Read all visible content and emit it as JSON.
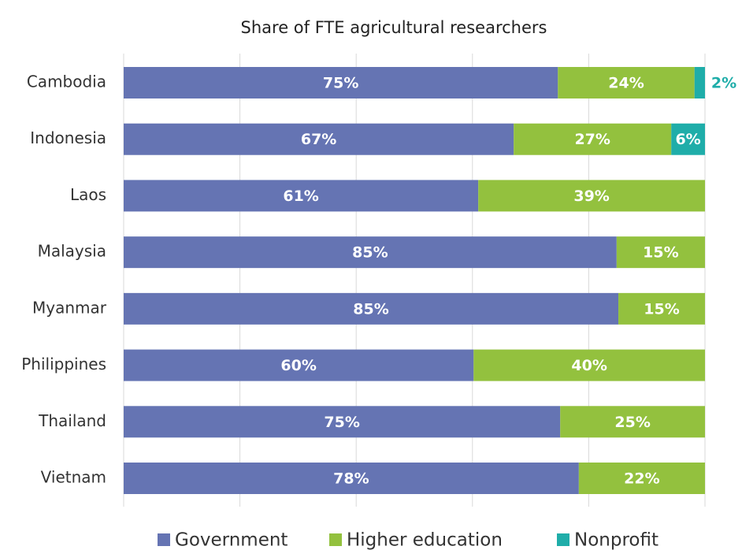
{
  "chart_data": {
    "type": "stacked_bar_horizontal",
    "title": "Share of FTE agricultural researchers",
    "categories": [
      "Cambodia",
      "Indonesia",
      "Laos",
      "Malaysia",
      "Myanmar",
      "Philippines",
      "Thailand",
      "Vietnam"
    ],
    "series": [
      {
        "name": "Government",
        "color": "#6574b3",
        "values": [
          74.7,
          67.1,
          61.0,
          84.8,
          85.1,
          60.2,
          75.1,
          78.3
        ],
        "value_labels": [
          "75%",
          "67%",
          "61%",
          "85%",
          "85%",
          "60%",
          "75%",
          "78%"
        ]
      },
      {
        "name": "Higher education",
        "color": "#93c13e",
        "values": [
          23.5,
          27.1,
          39.0,
          15.2,
          14.9,
          39.8,
          24.9,
          21.7
        ],
        "value_labels": [
          "24%",
          "27%",
          "39%",
          "15%",
          "15%",
          "40%",
          "25%",
          "22%"
        ]
      },
      {
        "name": "Nonprofit",
        "color": "#1fada9",
        "values": [
          1.8,
          5.8,
          null,
          null,
          null,
          null,
          null,
          null
        ],
        "value_labels": [
          "2%",
          "6%",
          null,
          null,
          null,
          null,
          null,
          null
        ]
      }
    ],
    "xlim": [
      0,
      100
    ],
    "xticks": [
      0,
      20,
      40,
      60,
      80,
      100
    ],
    "grid": true,
    "legend": "bottom"
  }
}
